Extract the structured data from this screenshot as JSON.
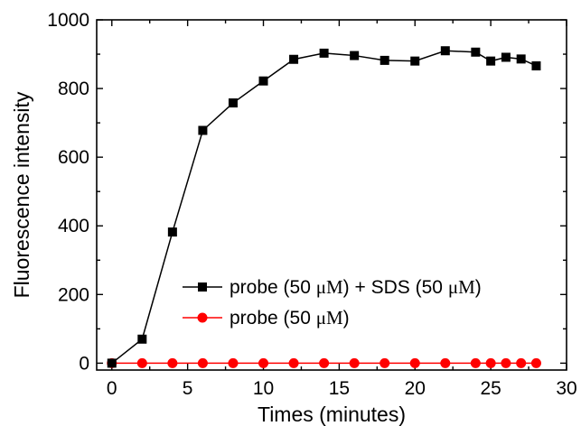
{
  "chart_data": {
    "type": "line",
    "title": "",
    "xlabel": "Times (minutes)",
    "ylabel": "Fluorescence intensity",
    "xlim": [
      -1,
      30
    ],
    "ylim": [
      -20,
      1000
    ],
    "xticks": [
      "0",
      "5",
      "10",
      "15",
      "20",
      "25",
      "30"
    ],
    "yticks": [
      "0",
      "200",
      "400",
      "600",
      "800",
      "1000"
    ],
    "legend_position": "bottom-right",
    "series": [
      {
        "name": "probe (50 μM) + SDS (50 μM)",
        "name_parts": [
          "probe (50 ",
          "μM",
          ") + SDS (50 ",
          "μM",
          ")"
        ],
        "color": "#000000",
        "marker": "square",
        "x": [
          0,
          2,
          4,
          6,
          8,
          10,
          12,
          14,
          16,
          18,
          20,
          22,
          24,
          25,
          26,
          27,
          28
        ],
        "y": [
          0,
          70,
          382,
          678,
          758,
          822,
          885,
          903,
          896,
          882,
          880,
          910,
          906,
          880,
          891,
          886,
          866
        ]
      },
      {
        "name": "probe (50 μM)",
        "name_parts": [
          "probe (50 ",
          "μM",
          ")"
        ],
        "color": "#ff0000",
        "marker": "circle",
        "x": [
          0,
          2,
          4,
          6,
          8,
          10,
          12,
          14,
          16,
          18,
          20,
          22,
          24,
          25,
          26,
          27,
          28
        ],
        "y": [
          0,
          0,
          0,
          0,
          0,
          0,
          0,
          0,
          0,
          0,
          0,
          0,
          0,
          0,
          0,
          0,
          0
        ]
      }
    ]
  }
}
